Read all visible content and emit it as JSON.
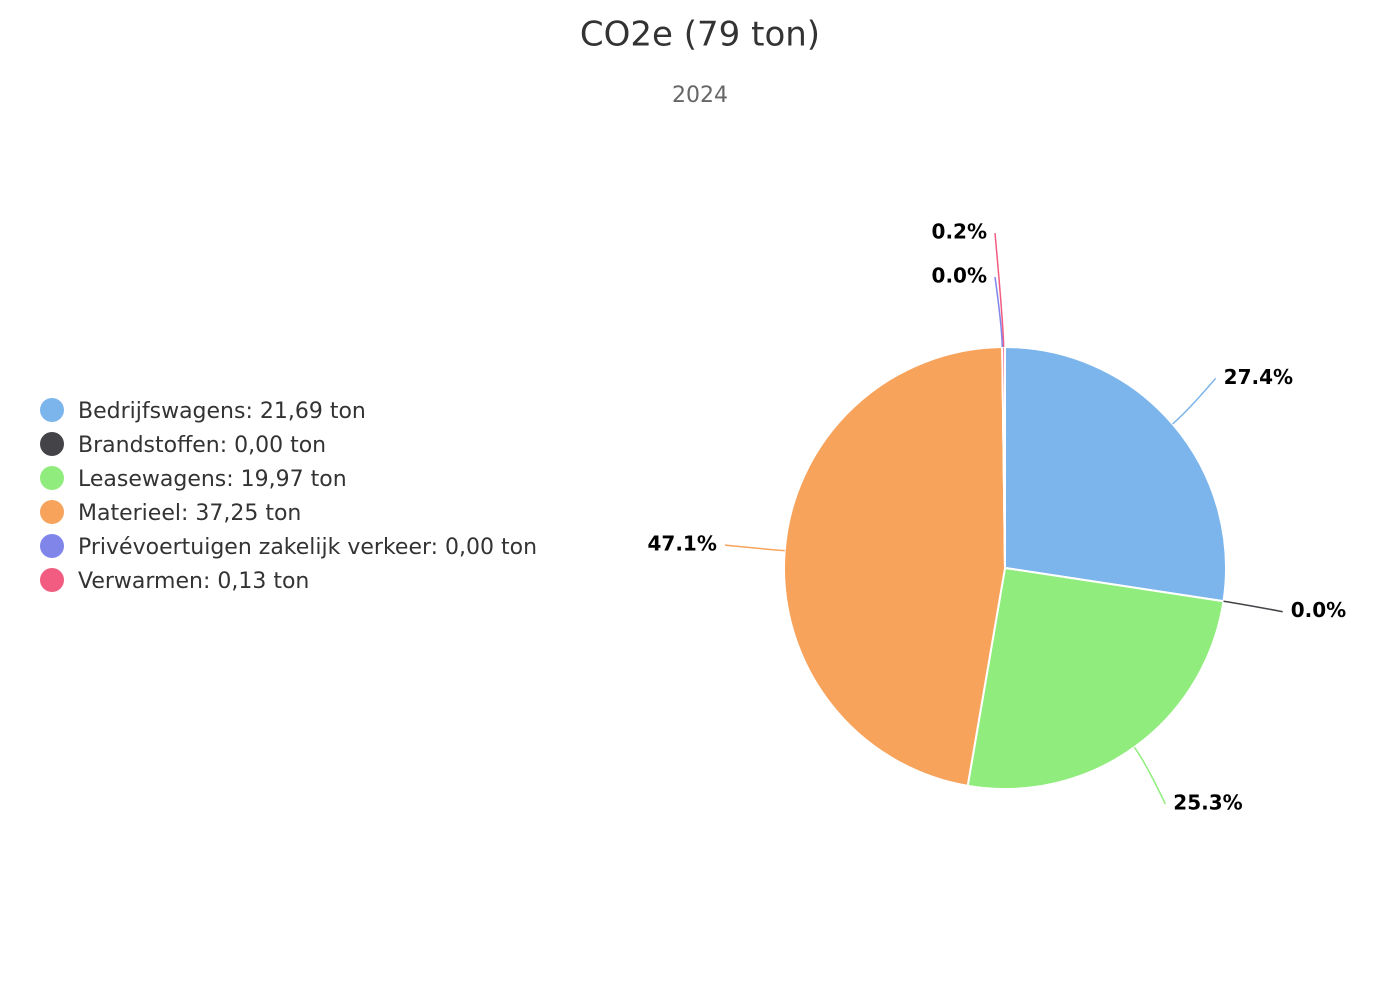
{
  "chart_data": {
    "type": "pie",
    "title": "CO2e (79 ton)",
    "subtitle": "2024",
    "categories": [
      "Bedrijfswagens: 21,69 ton",
      "Brandstoffen: 0,00 ton",
      "Leasewagens: 19,97 ton",
      "Materieel: 37,25 ton",
      "Privévoertuigen zakelijk verkeer: 0,00 ton",
      "Verwarmen: 0,13 ton"
    ],
    "values": [
      27.4,
      0.0,
      25.3,
      47.1,
      0.0,
      0.2
    ],
    "value_labels": [
      "27.4%",
      "0.0%",
      "25.3%",
      "47.1%",
      "0.0%",
      "0.2%"
    ],
    "colors": [
      "#7cb5ec",
      "#434348",
      "#90ed7d",
      "#f7a35c",
      "#8085e9",
      "#f15c80"
    ],
    "legend": "left"
  }
}
